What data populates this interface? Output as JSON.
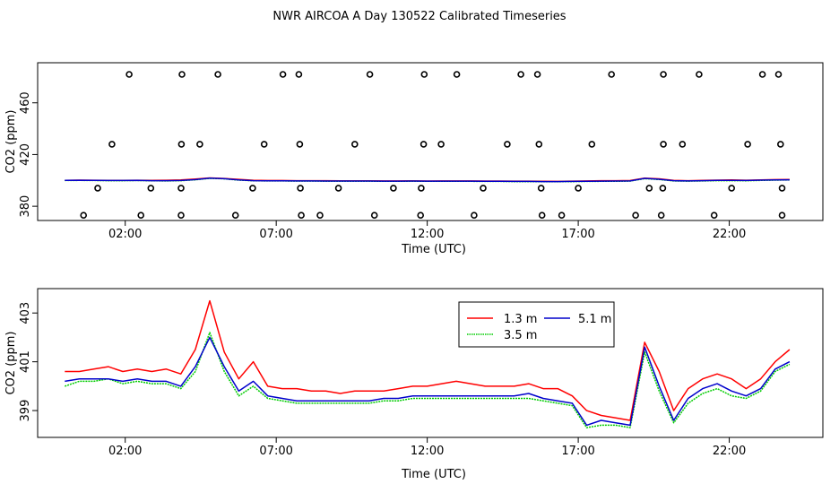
{
  "title": "NWR AIRCOA A  Day 130522  Calibrated Timeseries",
  "chart_data": [
    {
      "type": "scatter",
      "xlabel": "Time (UTC)",
      "ylabel": "CO2 (ppm)",
      "xlim": [
        -0.9,
        25.1
      ],
      "ylim": [
        369,
        491
      ],
      "xticks": [
        {
          "v": 2,
          "label": "02:00"
        },
        {
          "v": 7,
          "label": "07:00"
        },
        {
          "v": 12,
          "label": "12:00"
        },
        {
          "v": 17,
          "label": "17:00"
        },
        {
          "v": 22,
          "label": "22:00"
        }
      ],
      "yticks": [
        380,
        420,
        460
      ],
      "grid": false,
      "points": {
        "ppm_482": [
          2.13,
          3.88,
          5.07,
          7.22,
          7.75,
          10.1,
          11.9,
          12.98,
          15.1,
          15.65,
          18.1,
          19.82,
          21.0,
          23.1,
          23.63
        ],
        "ppm_428": [
          1.56,
          3.86,
          4.47,
          6.6,
          7.78,
          9.6,
          11.88,
          12.46,
          14.65,
          15.7,
          17.45,
          19.82,
          20.45,
          22.61,
          23.7
        ],
        "ppm_394": [
          1.09,
          2.85,
          3.85,
          6.22,
          7.8,
          9.06,
          10.88,
          11.8,
          13.85,
          15.77,
          17.0,
          19.35,
          19.8,
          22.08,
          23.75
        ],
        "ppm_373": [
          0.62,
          2.52,
          3.85,
          5.65,
          7.83,
          8.45,
          10.25,
          11.78,
          13.55,
          15.8,
          16.45,
          18.9,
          19.75,
          21.5,
          23.75
        ]
      },
      "series": [
        {
          "color": "#ff0000",
          "y": [
            400.0,
            400.2,
            400.1,
            400.0,
            400.0,
            400.1,
            400.0,
            400.1,
            400.3,
            401.0,
            401.9,
            401.5,
            400.8,
            400.1,
            399.9,
            399.9,
            399.8,
            399.8,
            399.8,
            399.7,
            399.7,
            399.7,
            399.6,
            399.6,
            399.7,
            399.5,
            399.6,
            399.6,
            399.6,
            399.5,
            399.5,
            399.4,
            399.4,
            399.3,
            399.2,
            399.4,
            399.6,
            399.8,
            399.8,
            399.9,
            401.8,
            401.2,
            400.0,
            399.8,
            400.0,
            400.2,
            400.3,
            400.1,
            400.4,
            400.6,
            400.7
          ]
        },
        {
          "color": "#00cc00",
          "y": [
            399.9,
            400.0,
            399.9,
            399.8,
            399.8,
            399.9,
            399.7,
            399.6,
            399.8,
            400.5,
            401.6,
            401.2,
            400.2,
            399.7,
            399.6,
            399.6,
            399.5,
            399.5,
            399.4,
            399.4,
            399.4,
            399.4,
            399.3,
            399.3,
            399.4,
            399.3,
            399.3,
            399.3,
            399.3,
            399.2,
            399.2,
            399.1,
            399.1,
            399.0,
            399.0,
            399.1,
            399.2,
            399.3,
            399.3,
            399.5,
            401.4,
            400.7,
            399.6,
            399.4,
            399.6,
            399.8,
            399.8,
            399.7,
            400.0,
            400.2,
            400.3
          ]
        },
        {
          "color": "#0000cc",
          "y": [
            400.0,
            400.1,
            400.0,
            399.9,
            399.9,
            400.0,
            399.8,
            399.8,
            399.9,
            400.6,
            401.8,
            401.3,
            400.4,
            399.8,
            399.7,
            399.7,
            399.6,
            399.6,
            399.5,
            399.5,
            399.5,
            399.5,
            399.4,
            399.4,
            399.5,
            399.4,
            399.4,
            399.4,
            399.4,
            399.3,
            399.3,
            399.2,
            399.2,
            399.1,
            399.1,
            399.2,
            399.3,
            399.4,
            399.5,
            399.6,
            401.6,
            400.9,
            399.8,
            399.6,
            399.8,
            400.0,
            400.0,
            399.9,
            400.2,
            400.4,
            400.5
          ]
        }
      ]
    },
    {
      "type": "line",
      "xlabel": "Time (UTC)",
      "ylabel": "CO2 (ppm)",
      "xlim": [
        -0.9,
        25.1
      ],
      "ylim": [
        397.9,
        404.0
      ],
      "xticks": [
        {
          "v": 2,
          "label": "02:00"
        },
        {
          "v": 7,
          "label": "07:00"
        },
        {
          "v": 12,
          "label": "12:00"
        },
        {
          "v": 17,
          "label": "17:00"
        },
        {
          "v": 22,
          "label": "22:00"
        }
      ],
      "yticks": [
        {
          "v": 399,
          "label": "399"
        },
        {
          "v": 401,
          "label": "401"
        },
        {
          "v": 403,
          "label": "403"
        }
      ],
      "grid": false,
      "legend": {
        "placement": "top-right",
        "entries": [
          {
            "label": "1.3 m",
            "color": "#ff0000"
          },
          {
            "label": "3.5 m",
            "color": "#00cc00"
          },
          {
            "label": "5.1 m",
            "color": "#0000cc"
          }
        ]
      },
      "series": [
        {
          "color": "#ff0000",
          "y": [
            400.6,
            400.6,
            400.7,
            400.8,
            400.6,
            400.7,
            400.6,
            400.7,
            400.5,
            401.5,
            403.5,
            401.4,
            400.3,
            401.0,
            400.0,
            399.9,
            399.9,
            399.8,
            399.8,
            399.7,
            399.8,
            399.8,
            399.8,
            399.9,
            400.0,
            400.0,
            400.1,
            400.2,
            400.1,
            400.0,
            400.0,
            400.0,
            400.1,
            399.9,
            399.9,
            399.6,
            399.0,
            398.8,
            398.7,
            398.6,
            401.8,
            400.6,
            399.0,
            399.9,
            400.3,
            400.5,
            400.3,
            399.9,
            400.3,
            401.0,
            401.5
          ]
        },
        {
          "color": "#00cc00",
          "y": [
            400.0,
            400.2,
            400.2,
            400.3,
            400.1,
            400.2,
            400.1,
            400.1,
            399.9,
            400.6,
            402.2,
            400.6,
            399.6,
            400.0,
            399.5,
            399.4,
            399.3,
            399.3,
            399.3,
            399.3,
            399.3,
            399.3,
            399.4,
            399.4,
            399.5,
            399.5,
            399.5,
            399.5,
            399.5,
            399.5,
            399.5,
            399.5,
            399.5,
            399.4,
            399.3,
            399.2,
            398.3,
            398.4,
            398.4,
            398.3,
            401.4,
            399.8,
            398.5,
            399.3,
            399.7,
            399.9,
            399.6,
            399.5,
            399.8,
            400.6,
            400.9
          ]
        },
        {
          "color": "#0000cc",
          "y": [
            400.2,
            400.3,
            400.3,
            400.3,
            400.2,
            400.3,
            400.2,
            400.2,
            400.0,
            400.8,
            402.0,
            400.8,
            399.8,
            400.2,
            399.6,
            399.5,
            399.4,
            399.4,
            399.4,
            399.4,
            399.4,
            399.4,
            399.5,
            399.5,
            399.6,
            399.6,
            399.6,
            399.6,
            399.6,
            399.6,
            399.6,
            399.6,
            399.7,
            399.5,
            399.4,
            399.3,
            398.4,
            398.6,
            398.5,
            398.4,
            401.6,
            400.0,
            398.6,
            399.5,
            399.9,
            400.1,
            399.8,
            399.6,
            399.9,
            400.7,
            401.0
          ]
        }
      ]
    }
  ]
}
